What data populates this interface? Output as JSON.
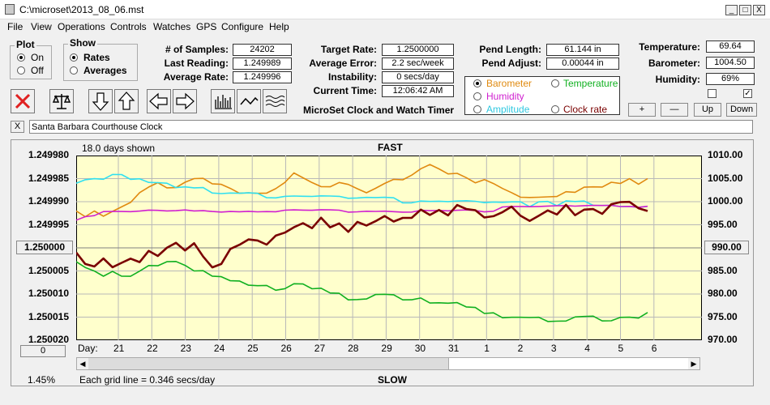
{
  "window": {
    "title": "C:\\microset\\2013_08_06.mst",
    "min": "_",
    "max": "□",
    "close": "X"
  },
  "menu": [
    "File",
    "View",
    "Operations",
    "Controls",
    "Watches",
    "GPS",
    "Configure",
    "Help"
  ],
  "plot_group": {
    "title": "Plot",
    "on": "On",
    "off": "Off"
  },
  "show_group": {
    "title": "Show",
    "rates": "Rates",
    "averages": "Averages"
  },
  "stats": {
    "samples_label": "# of Samples:",
    "samples": "24202",
    "last_label": "Last Reading:",
    "last": "1.249989",
    "avg_label": "Average Rate:",
    "avg": "1.249996"
  },
  "rates": {
    "target_label": "Target Rate:",
    "target": "1.2500000",
    "error_label": "Average Error:",
    "error": "2.2 sec/week",
    "instab_label": "Instability:",
    "instab": "0 secs/day",
    "time_label": "Current Time:",
    "time": "12:06:42 AM"
  },
  "pend": {
    "length_label": "Pend Length:",
    "length": "61.144 in",
    "adjust_label": "Pend Adjust:",
    "adjust": "0.00044 in"
  },
  "env": {
    "temp_label": "Temperature:",
    "temp": "69.64",
    "baro_label": "Barometer:",
    "baro": "1004.50",
    "hum_label": "Humidity:",
    "hum": "69%"
  },
  "legend": {
    "barometer": "Barometer",
    "temperature": "Temperature",
    "humidity": "Humidity",
    "amplitude": "Amplitude",
    "clock_rate": "Clock rate"
  },
  "app_title": "MicroSet Clock and Watch Timer",
  "adj_buttons": {
    "plus": "+",
    "minus": "—",
    "up": "Up",
    "down": "Down"
  },
  "clock_name": "Santa Barbara Courthouse Clock",
  "name_close": "X",
  "colors": {
    "clock_rate": "#7a0000",
    "barometer": "#e08a10",
    "temperature": "#10b020",
    "humidity": "#d020d0",
    "amplitude": "#30e0f0",
    "plot_bg": "#ffffcc"
  },
  "chart_data": {
    "type": "line",
    "title": "FAST",
    "bottom_label": "SLOW",
    "days_shown": "18.0 days shown",
    "grid_note": "Each grid line = 0.346 secs/day",
    "left_ticks": [
      "1.249980",
      "1.249985",
      "1.249990",
      "1.249995",
      "1.250000",
      "1.250005",
      "1.250010",
      "1.250015",
      "1.250020"
    ],
    "right_ticks": [
      "1010.00",
      "1005.00",
      "1000.00",
      "995.00",
      "990.00",
      "985.00",
      "980.00",
      "975.00",
      "970.00"
    ],
    "left_center_button": "1.250000",
    "right_center_button": "990.00",
    "bottom_left_button": "0",
    "percent": "1.45%",
    "day_label": "Day:",
    "days": [
      "21",
      "22",
      "23",
      "24",
      "25",
      "26",
      "27",
      "28",
      "29",
      "30",
      "31",
      "1",
      "2",
      "3",
      "4",
      "5",
      "6"
    ],
    "left_range": [
      1.24998,
      1.25002
    ],
    "right_range": [
      970,
      1010
    ],
    "series": [
      {
        "key": "clock_rate",
        "values": [
          1.250001,
          1.250003,
          1.250004,
          1.250002,
          1.250004,
          1.250003,
          1.250002,
          1.250003,
          1.250001,
          1.250002,
          1.25,
          1.249999,
          1.250001,
          1.249999,
          1.250002,
          1.250004,
          1.250003,
          1.25,
          1.249999,
          1.249998,
          1.249998,
          1.249999,
          1.249997,
          1.249997,
          1.249996,
          1.249995,
          1.249996,
          1.249994,
          1.249996,
          1.249995,
          1.249996,
          1.249994,
          1.249995,
          1.249994,
          1.249993,
          1.249994,
          1.249993,
          1.249993,
          1.249992,
          1.249993,
          1.249992,
          1.249993,
          1.249991,
          1.249992,
          1.249992,
          1.249993,
          1.249993,
          1.249992,
          1.249991,
          1.249993,
          1.249994,
          1.249993,
          1.249992,
          1.249993,
          1.249991,
          1.249993,
          1.249992,
          1.249992,
          1.249993,
          1.249991,
          1.24999,
          1.24999,
          1.249991,
          1.249992
        ]
      },
      {
        "key": "barometer",
        "values": [
          998,
          997,
          998,
          997,
          998,
          999,
          1000,
          1002,
          1003,
          1004,
          1003,
          1003,
          1004,
          1005,
          1005,
          1004,
          1004,
          1003,
          1002,
          1002,
          1002,
          1002,
          1003,
          1004,
          1006,
          1005,
          1004,
          1003,
          1003,
          1004,
          1004,
          1003,
          1002,
          1003,
          1004,
          1005,
          1005,
          1006,
          1007,
          1008,
          1007,
          1006,
          1006,
          1005,
          1004,
          1005,
          1004,
          1003,
          1002,
          1001,
          1001,
          1001,
          1001,
          1001,
          1002,
          1002,
          1003,
          1003,
          1003,
          1004,
          1004,
          1005,
          1004,
          1005
        ]
      },
      {
        "key": "amplitude",
        "values": [
          1004,
          1005,
          1005,
          1005,
          1006,
          1006,
          1005,
          1005,
          1004,
          1004,
          1004,
          1003,
          1003,
          1003,
          1003,
          1002,
          1002,
          1002,
          1002,
          1002,
          1002,
          1001,
          1001,
          1001,
          1001,
          1001,
          1001,
          1001,
          1001,
          1001,
          1001,
          1001,
          1001,
          1001,
          1001,
          1001,
          1000,
          1000,
          1000,
          1000,
          1000,
          1000,
          1000,
          1000,
          1000,
          1000,
          1000,
          1000,
          1000,
          1000,
          999,
          1000,
          1000,
          999,
          1000,
          1000,
          1000,
          999,
          999,
          999,
          999,
          999,
          999,
          999
        ]
      },
      {
        "key": "humidity",
        "values": [
          996,
          997,
          997,
          998,
          998,
          998,
          998,
          998,
          998,
          998,
          998,
          998,
          998,
          998,
          998,
          998,
          998,
          998,
          998,
          998,
          998,
          998,
          998,
          998,
          998,
          998,
          998,
          998,
          998,
          998,
          998,
          998,
          998,
          998,
          998,
          998,
          998,
          998,
          998,
          998,
          998,
          998,
          998,
          998,
          998,
          998,
          998,
          999,
          999,
          999,
          999,
          999,
          999,
          999,
          999,
          999,
          999,
          999,
          999,
          999,
          999,
          999,
          999,
          999
        ]
      },
      {
        "key": "temperature",
        "values": [
          987,
          986,
          985,
          984,
          985,
          984,
          984,
          985,
          986,
          986,
          987,
          987,
          986,
          985,
          985,
          984,
          984,
          983,
          983,
          982,
          982,
          982,
          981,
          981,
          982,
          982,
          981,
          981,
          980,
          980,
          979,
          979,
          979,
          980,
          980,
          980,
          979,
          979,
          979,
          978,
          978,
          978,
          978,
          977,
          977,
          976,
          976,
          975,
          975,
          975,
          975,
          975,
          974,
          974,
          974,
          975,
          975,
          975,
          974,
          974,
          975,
          975,
          975,
          976
        ]
      }
    ]
  }
}
